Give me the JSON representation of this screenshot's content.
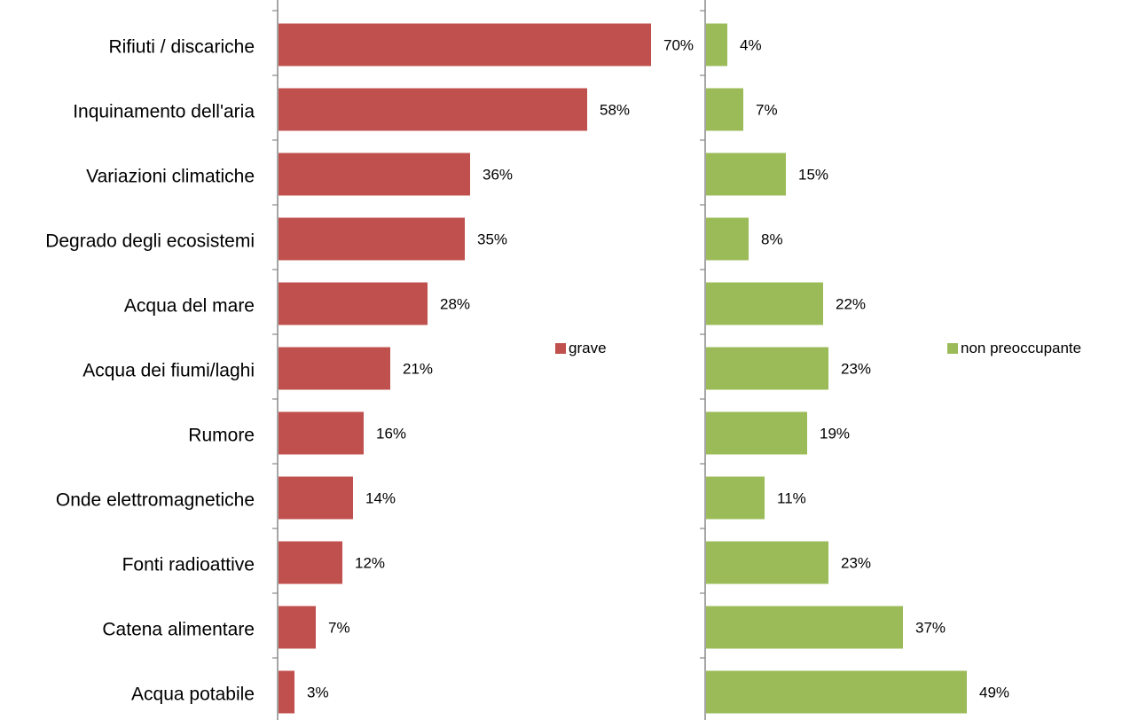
{
  "chart_data": [
    {
      "type": "bar",
      "orientation": "horizontal",
      "categories": [
        "Rifiuti / discariche",
        "Inquinamento dell'aria",
        "Variazioni climatiche",
        "Degrado degli ecosistemi",
        "Acqua del mare",
        "Acqua dei fiumi/laghi",
        "Rumore",
        "Onde elettromagnetiche",
        "Fonti radioattive",
        "Catena alimentare",
        "Acqua potabile"
      ],
      "series": [
        {
          "name": "grave",
          "values": [
            70,
            58,
            36,
            35,
            28,
            21,
            16,
            14,
            12,
            7,
            3
          ],
          "labels": [
            "70%",
            "58%",
            "36%",
            "35%",
            "28%",
            "21%",
            "16%",
            "14%",
            "12%",
            "7%",
            "3%"
          ],
          "color": "#c0504d"
        }
      ],
      "value_unit": "%",
      "xlim": [
        0,
        80
      ],
      "grid": false,
      "legend": "right"
    },
    {
      "type": "bar",
      "orientation": "horizontal",
      "categories": [
        "Rifiuti / discariche",
        "Inquinamento dell'aria",
        "Variazioni climatiche",
        "Degrado degli ecosistemi",
        "Acqua del mare",
        "Acqua dei fiumi/laghi",
        "Rumore",
        "Onde elettromagnetiche",
        "Fonti radioattive",
        "Catena alimentare",
        "Acqua potabile"
      ],
      "series": [
        {
          "name": "non preoccupante",
          "values": [
            4,
            7,
            15,
            8,
            22,
            23,
            19,
            11,
            23,
            37,
            49
          ],
          "labels": [
            "4%",
            "7%",
            "15%",
            "8%",
            "22%",
            "23%",
            "19%",
            "11%",
            "23%",
            "37%",
            "49%"
          ],
          "color": "#9bbb59"
        }
      ],
      "value_unit": "%",
      "xlim": [
        0,
        80
      ],
      "grid": false,
      "legend": "right"
    }
  ]
}
